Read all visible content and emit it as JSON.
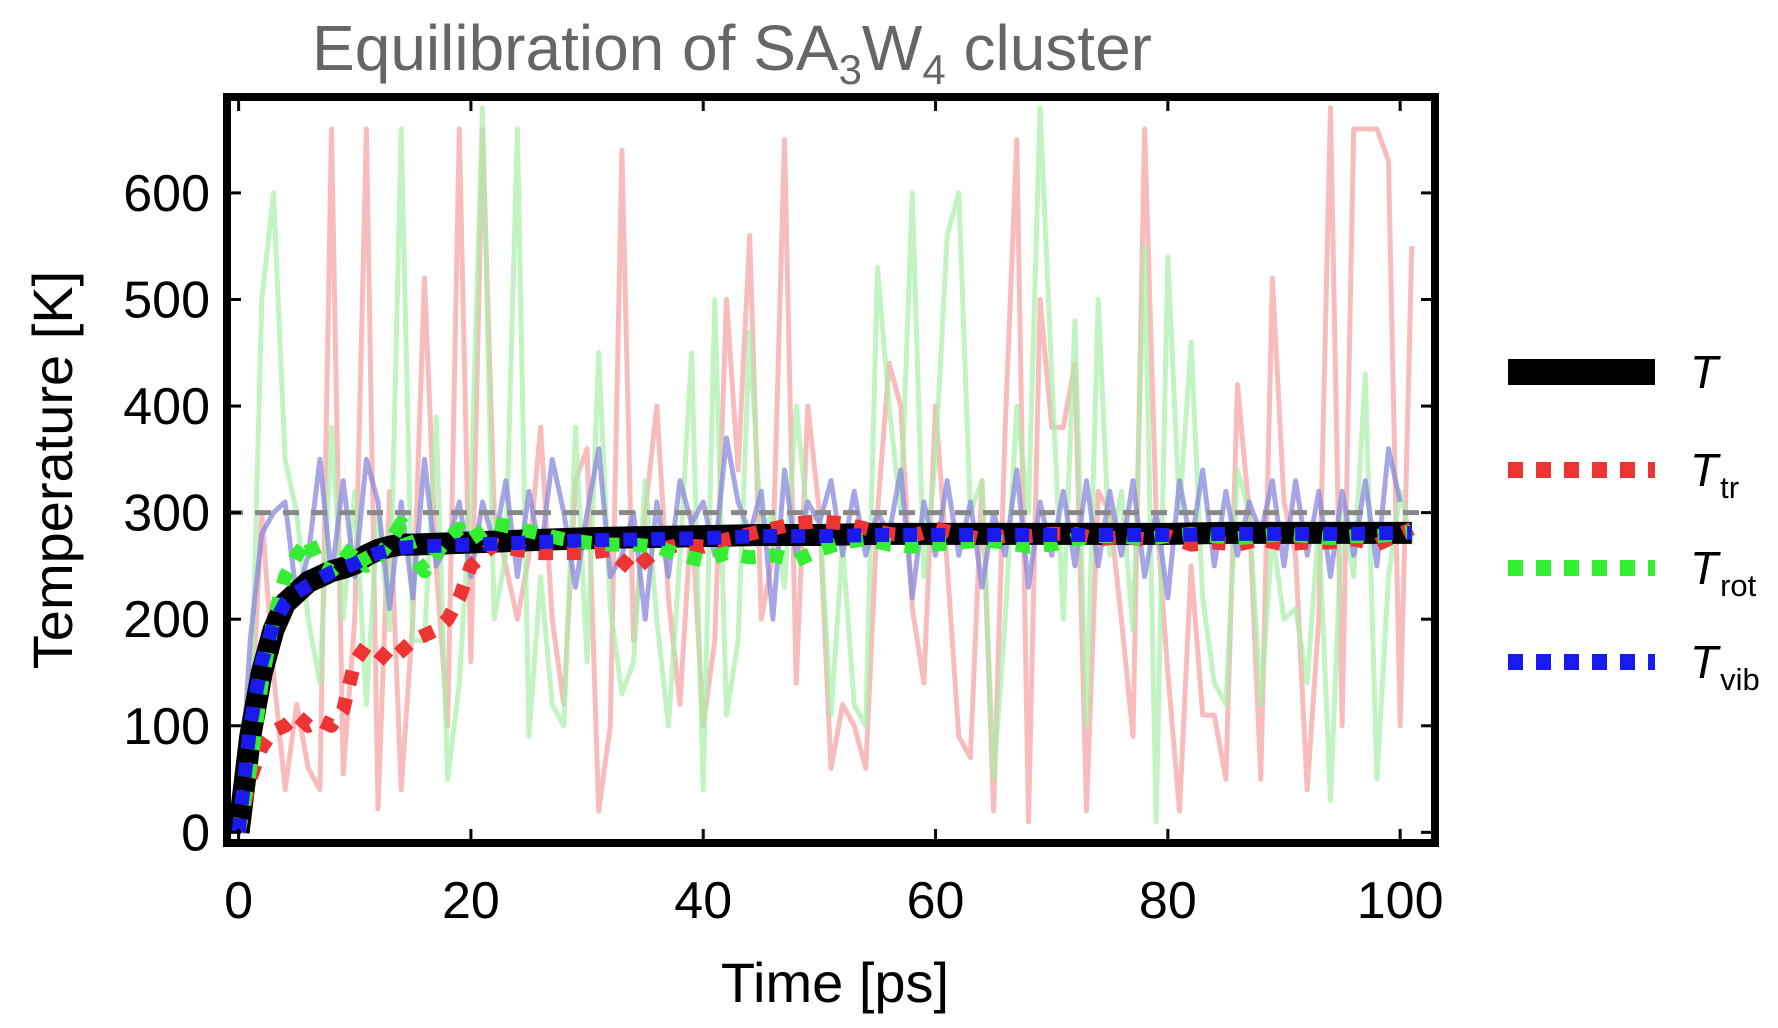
{
  "chart_data": {
    "type": "line",
    "title_main": "Equilibration of SA",
    "title_sub1": "3",
    "title_mid": "W",
    "title_sub2": "4",
    "title_end": " cluster",
    "xlabel": "Time [ps]",
    "ylabel": "Temperature [K]",
    "xlim": [
      -1,
      103
    ],
    "ylim": [
      -10,
      690
    ],
    "xticks": [
      0,
      20,
      40,
      60,
      80,
      100
    ],
    "yticks": [
      0,
      100,
      200,
      300,
      400,
      500,
      600
    ],
    "reference_line": {
      "y": 300,
      "color": "#888888",
      "style": "dashed"
    },
    "legend_position": "right",
    "legend": [
      {
        "main": "T",
        "sub": "",
        "color": "#000000",
        "style": "solid"
      },
      {
        "main": "T",
        "sub": "tr",
        "color": "#ee3333",
        "style": "dotted"
      },
      {
        "main": "T",
        "sub": "rot",
        "color": "#33ee33",
        "style": "dotted"
      },
      {
        "main": "T",
        "sub": "vib",
        "color": "#1a1aee",
        "style": "dotted"
      }
    ],
    "x": [
      0,
      1,
      2,
      3,
      4,
      5,
      6,
      7,
      8,
      9,
      10,
      11,
      12,
      13,
      14,
      15,
      16,
      17,
      18,
      19,
      20,
      21,
      22,
      23,
      24,
      25,
      26,
      27,
      28,
      29,
      30,
      31,
      32,
      33,
      34,
      35,
      36,
      37,
      38,
      39,
      40,
      41,
      42,
      43,
      44,
      45,
      46,
      47,
      48,
      49,
      50,
      51,
      52,
      53,
      54,
      55,
      56,
      57,
      58,
      59,
      60,
      61,
      62,
      63,
      64,
      65,
      66,
      67,
      68,
      69,
      70,
      71,
      72,
      73,
      74,
      75,
      76,
      77,
      78,
      79,
      80,
      81,
      82,
      83,
      84,
      85,
      86,
      87,
      88,
      89,
      90,
      91,
      92,
      93,
      94,
      95,
      96,
      97,
      98,
      99,
      100,
      101
    ],
    "series_inst": [
      {
        "name": "T_tr_inst",
        "color": "#f5a0a0",
        "values": [
          0,
          80,
          300,
          150,
          40,
          120,
          60,
          40,
          660,
          55,
          200,
          660,
          22,
          320,
          40,
          200,
          520,
          250,
          100,
          660,
          160,
          660,
          300,
          250,
          200,
          260,
          380,
          200,
          120,
          330,
          360,
          20,
          100,
          640,
          180,
          300,
          400,
          220,
          120,
          300,
          100,
          180,
          500,
          340,
          560,
          200,
          260,
          650,
          140,
          400,
          300,
          60,
          120,
          100,
          60,
          300,
          440,
          400,
          210,
          140,
          400,
          250,
          90,
          70,
          330,
          20,
          380,
          650,
          10,
          500,
          380,
          380,
          440,
          20,
          320,
          300,
          200,
          90,
          660,
          300,
          150,
          20,
          250,
          110,
          110,
          50,
          420,
          300,
          50,
          520,
          310,
          260,
          40,
          200,
          680,
          100,
          660,
          660,
          660,
          630,
          100,
          550
        ]
      },
      {
        "name": "T_rot_inst",
        "color": "#a8f0a8",
        "values": [
          0,
          80,
          500,
          600,
          350,
          300,
          200,
          140,
          380,
          200,
          320,
          120,
          300,
          190,
          660,
          180,
          180,
          390,
          50,
          140,
          320,
          680,
          200,
          260,
          660,
          90,
          240,
          120,
          100,
          380,
          160,
          450,
          210,
          130,
          160,
          330,
          200,
          100,
          260,
          450,
          40,
          500,
          110,
          180,
          470,
          280,
          300,
          230,
          400,
          290,
          300,
          110,
          270,
          120,
          100,
          530,
          400,
          300,
          600,
          240,
          350,
          560,
          600,
          300,
          330,
          50,
          200,
          400,
          300,
          680,
          430,
          200,
          480,
          100,
          500,
          260,
          320,
          190,
          550,
          10,
          540,
          300,
          460,
          220,
          140,
          120,
          340,
          300,
          120,
          280,
          200,
          210,
          140,
          290,
          30,
          300,
          240,
          430,
          50,
          240,
          320,
          270
        ]
      },
      {
        "name": "T_vib_inst",
        "color": "#8888dd",
        "values": [
          0,
          180,
          280,
          300,
          310,
          220,
          260,
          350,
          240,
          330,
          240,
          350,
          310,
          210,
          310,
          220,
          350,
          250,
          270,
          310,
          240,
          310,
          270,
          330,
          240,
          320,
          260,
          350,
          300,
          230,
          300,
          360,
          240,
          260,
          300,
          200,
          310,
          240,
          330,
          290,
          310,
          260,
          370,
          310,
          280,
          320,
          200,
          340,
          260,
          310,
          290,
          330,
          260,
          320,
          260,
          300,
          280,
          340,
          220,
          310,
          260,
          330,
          260,
          310,
          230,
          300,
          260,
          340,
          230,
          310,
          260,
          320,
          250,
          330,
          250,
          320,
          260,
          330,
          240,
          300,
          220,
          330,
          270,
          340,
          250,
          320,
          260,
          310,
          280,
          330,
          250,
          330,
          260,
          320,
          240,
          320,
          260,
          330,
          250,
          360,
          310
        ]
      }
    ],
    "series": [
      {
        "name": "T",
        "color": "#000000",
        "x": [
          0,
          1,
          2,
          3,
          4,
          5,
          6,
          7,
          8,
          9,
          10,
          11,
          12,
          13,
          14,
          15,
          20,
          25,
          30,
          35,
          40,
          45,
          50,
          55,
          60,
          65,
          70,
          75,
          80,
          85,
          90,
          95,
          100,
          101
        ],
        "values": [
          0,
          90,
          150,
          190,
          215,
          225,
          235,
          240,
          245,
          248,
          252,
          260,
          265,
          268,
          270,
          270,
          272,
          274,
          276,
          277,
          278,
          279,
          279,
          280,
          280,
          280,
          280,
          280,
          280,
          281,
          281,
          281,
          281,
          281
        ]
      },
      {
        "name": "T_tr",
        "color": "#ee3333",
        "x": [
          0,
          1,
          2,
          3,
          4,
          5,
          6,
          7,
          8,
          9,
          10,
          11,
          12,
          13,
          14,
          15,
          16,
          17,
          18,
          19,
          20,
          22,
          24,
          26,
          28,
          30,
          32,
          34,
          36,
          38,
          40,
          42,
          44,
          46,
          48,
          50,
          52,
          54,
          56,
          58,
          60,
          62,
          64,
          66,
          68,
          70,
          72,
          74,
          76,
          78,
          80,
          82,
          84,
          86,
          88,
          90,
          92,
          94,
          96,
          98,
          100,
          101
        ],
        "values": [
          0,
          50,
          80,
          95,
          100,
          110,
          100,
          105,
          100,
          115,
          160,
          175,
          170,
          160,
          170,
          180,
          185,
          190,
          200,
          220,
          250,
          270,
          265,
          262,
          262,
          262,
          265,
          245,
          265,
          270,
          268,
          275,
          280,
          285,
          290,
          292,
          290,
          285,
          280,
          278,
          285,
          280,
          275,
          278,
          278,
          280,
          280,
          275,
          277,
          275,
          278,
          270,
          272,
          270,
          275,
          270,
          272,
          272,
          275,
          270,
          280,
          285
        ]
      },
      {
        "name": "T_rot",
        "color": "#33ee33",
        "x": [
          0,
          1,
          2,
          3,
          4,
          5,
          6,
          7,
          8,
          9,
          10,
          11,
          12,
          13,
          14,
          15,
          16,
          17,
          18,
          19,
          20,
          22,
          24,
          26,
          28,
          30,
          32,
          34,
          36,
          38,
          40,
          42,
          44,
          46,
          48,
          50,
          52,
          54,
          56,
          58,
          60,
          62,
          64,
          66,
          68,
          70,
          72,
          74,
          76,
          78,
          80,
          82,
          84,
          86,
          88,
          90,
          92,
          94,
          96,
          98,
          100,
          101
        ],
        "values": [
          0,
          60,
          140,
          200,
          240,
          260,
          275,
          250,
          245,
          255,
          270,
          250,
          258,
          272,
          290,
          260,
          245,
          262,
          275,
          285,
          275,
          290,
          285,
          280,
          275,
          272,
          270,
          270,
          268,
          260,
          255,
          262,
          258,
          260,
          255,
          265,
          272,
          275,
          270,
          268,
          270,
          272,
          274,
          272,
          268,
          270,
          275,
          278,
          278,
          275,
          278,
          280,
          278,
          276,
          278,
          280,
          278,
          276,
          278,
          278,
          280,
          282
        ]
      },
      {
        "name": "T_vib",
        "color": "#1a1aee",
        "x": [
          0,
          1,
          2,
          3,
          4,
          5,
          6,
          7,
          8,
          9,
          10,
          11,
          12,
          13,
          14,
          15,
          20,
          25,
          30,
          35,
          40,
          45,
          50,
          55,
          60,
          65,
          70,
          75,
          80,
          85,
          90,
          95,
          100,
          101
        ],
        "values": [
          0,
          100,
          160,
          195,
          215,
          225,
          232,
          238,
          244,
          248,
          252,
          258,
          262,
          265,
          267,
          268,
          270,
          272,
          274,
          275,
          276,
          278,
          278,
          279,
          279,
          279,
          279,
          279,
          279,
          280,
          280,
          280,
          281,
          281
        ]
      }
    ]
  }
}
